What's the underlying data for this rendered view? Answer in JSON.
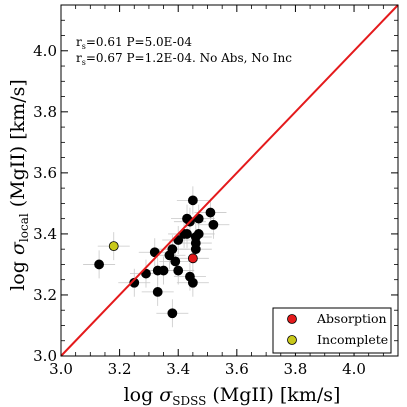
{
  "chart_data": {
    "type": "scatter",
    "xlabel": "log σSDSS (MgII) [km/s]",
    "ylabel": "log σlocal (MgII) [km/s]",
    "xlim": [
      3.0,
      4.15
    ],
    "ylim": [
      3.0,
      4.15
    ],
    "x_ticks": [
      "3.0",
      "3.2",
      "3.4",
      "3.6",
      "3.8",
      "4.0"
    ],
    "y_ticks": [
      "3.0",
      "3.2",
      "3.4",
      "3.6",
      "3.8",
      "4.0"
    ],
    "grid": false,
    "reference_line": {
      "type": "one-to-one",
      "color": "#e41a1c"
    },
    "annotations": [
      "rs=0.61 P=5.0E-04",
      "rs=0.67 P=1.2E-04. No Abs, No Inc"
    ],
    "legend": {
      "placement": "bottom-right",
      "entries": [
        {
          "label": "Absorption",
          "color": "#e41a1c"
        },
        {
          "label": "Incomplete",
          "color": "#c8c81a"
        }
      ]
    },
    "series": [
      {
        "color": "#000000",
        "points": [
          [
            3.13,
            3.3
          ],
          [
            3.25,
            3.24
          ],
          [
            3.29,
            3.27
          ],
          [
            3.32,
            3.34
          ],
          [
            3.33,
            3.21
          ],
          [
            3.33,
            3.28
          ],
          [
            3.35,
            3.28
          ],
          [
            3.37,
            3.33
          ],
          [
            3.38,
            3.35
          ],
          [
            3.38,
            3.14
          ],
          [
            3.39,
            3.31
          ],
          [
            3.4,
            3.28
          ],
          [
            3.4,
            3.38
          ],
          [
            3.42,
            3.4
          ],
          [
            3.43,
            3.45
          ],
          [
            3.43,
            3.4
          ],
          [
            3.44,
            3.44
          ],
          [
            3.44,
            3.26
          ],
          [
            3.45,
            3.51
          ],
          [
            3.45,
            3.24
          ],
          [
            3.46,
            3.39
          ],
          [
            3.46,
            3.37
          ],
          [
            3.46,
            3.35
          ],
          [
            3.47,
            3.45
          ],
          [
            3.47,
            3.4
          ],
          [
            3.51,
            3.47
          ],
          [
            3.52,
            3.43
          ]
        ]
      },
      {
        "name": "Absorption",
        "color": "#e41a1c",
        "points": [
          [
            3.45,
            3.32
          ]
        ]
      },
      {
        "name": "Incomplete",
        "color": "#c8c81a",
        "points": [
          [
            3.18,
            3.36
          ]
        ]
      }
    ]
  }
}
